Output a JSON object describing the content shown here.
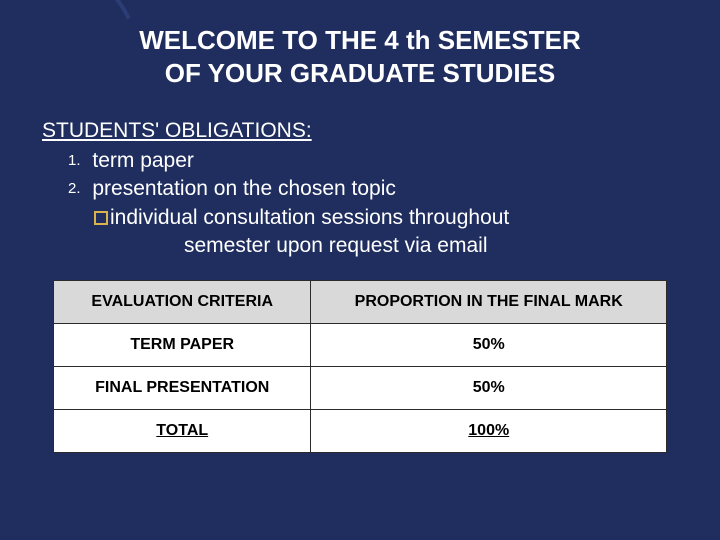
{
  "title_line1": "WELCOME TO THE 4 th SEMESTER",
  "title_line2": "OF YOUR GRADUATE STUDIES",
  "section_heading": "STUDENTS' OBLIGATIONS:",
  "obligations": {
    "num1": "1.",
    "item1": "term paper",
    "num2": "2.",
    "item2": "presentation on the chosen topic"
  },
  "note_line1": "individual consultation sessions throughout",
  "note_line2": "semester upon request  via email",
  "table": {
    "header_col1": "EVALUATION CRITERIA",
    "header_col2": "PROPORTION IN THE FINAL MARK",
    "rows": [
      {
        "c1": "TERM PAPER",
        "c2": "50%"
      },
      {
        "c1": "FINAL PRESENTATION",
        "c2": "50%"
      },
      {
        "c1": "TOTAL",
        "c2": "100%"
      }
    ]
  },
  "colors": {
    "background": "#1f2e5f",
    "text_primary": "#ffffff",
    "table_bg": "#ffffff",
    "table_header_bg": "#d9d9d9",
    "table_border": "#2b2b2b",
    "bullet_border": "#d8b24a"
  }
}
